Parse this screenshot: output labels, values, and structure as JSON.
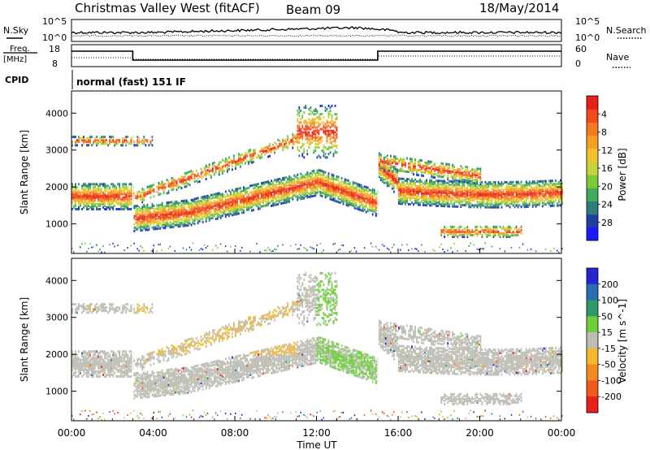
{
  "header": {
    "station": "Christmas Valley West (fitACF)",
    "beam": "Beam 09",
    "date": "18/May/2014"
  },
  "top_panels": {
    "nsky_label": "N.Sky",
    "nsky_ticks": [
      "10^5",
      "10^0"
    ],
    "nsearch_label": "N.Search",
    "nsearch_ticks": [
      "10^5",
      "10^0"
    ],
    "freq_label_1": "Freq.",
    "freq_label_2": "[MHz]",
    "freq_ticks": [
      "18",
      "8"
    ],
    "nave_label": "Nave",
    "nave_ticks": [
      "60",
      "0"
    ],
    "cpid_label": "CPID",
    "cpid_text": "normal (fast) 151 IF"
  },
  "chart_data": [
    {
      "type": "heatmap",
      "name": "power-panel",
      "ylabel": "Slant Range [km]",
      "ylim": [
        200,
        4600
      ],
      "yticks": [
        "1000",
        "2000",
        "3000",
        "4000"
      ],
      "xlim": [
        "00:00",
        "00:00"
      ],
      "colorbar": {
        "label": "Power [dB]",
        "ticks": [
          "4",
          "8",
          "12",
          "16",
          "20",
          "24",
          "28"
        ],
        "colors": [
          "#1a1aff",
          "#1f3fa0",
          "#2e7d7d",
          "#3faa5a",
          "#7acb3a",
          "#c8d23a",
          "#f2c22a",
          "#f5a023",
          "#f57a1f",
          "#f24a1a",
          "#e8201a"
        ]
      }
    },
    {
      "type": "heatmap",
      "name": "velocity-panel",
      "ylabel": "Slant Range [km]",
      "ylim": [
        200,
        4600
      ],
      "yticks": [
        "1000",
        "2000",
        "3000",
        "4000"
      ],
      "xlim": [
        "00:00",
        "00:00"
      ],
      "colorbar": {
        "label": "Velocity [m s^-1]",
        "ticks": [
          "200",
          "100",
          "50",
          "15",
          "-15",
          "-50",
          "-100",
          "-200"
        ],
        "colors": [
          "#2626d0",
          "#2a6fb5",
          "#2e9a6a",
          "#6ccf3a",
          "#bdbdb5",
          "#f5b82a",
          "#f58a22",
          "#f25a1c",
          "#e8201a"
        ]
      }
    }
  ],
  "xaxis": {
    "ticks": [
      "00:00",
      "04:00",
      "08:00",
      "12:00",
      "16:00",
      "20:00",
      "00:00"
    ],
    "label": "Time UT"
  }
}
